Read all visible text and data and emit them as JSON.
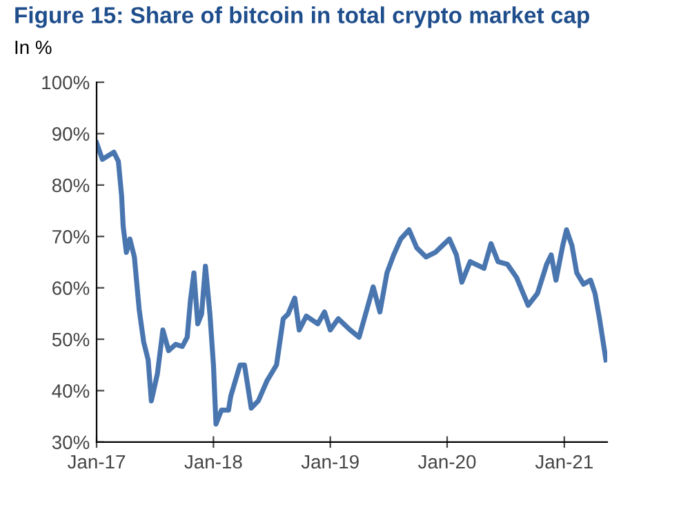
{
  "chart_data": {
    "type": "line",
    "title": "Figure 15: Share of bitcoin in total crypto market cap",
    "subtitle": "In %",
    "x": [
      "2017-01-01",
      "2017-01-19",
      "2017-02-24",
      "2017-03-10",
      "2017-03-20",
      "2017-03-25",
      "2017-04-04",
      "2017-04-15",
      "2017-04-29",
      "2017-05-14",
      "2017-05-28",
      "2017-06-11",
      "2017-06-21",
      "2017-07-10",
      "2017-07-27",
      "2017-08-14",
      "2017-09-05",
      "2017-09-26",
      "2017-10-11",
      "2017-10-21",
      "2017-11-01",
      "2017-11-13",
      "2017-11-25",
      "2017-12-07",
      "2017-12-21",
      "2018-01-01",
      "2018-01-09",
      "2018-01-26",
      "2018-02-17",
      "2018-02-24",
      "2018-03-25",
      "2018-04-08",
      "2018-04-29",
      "2018-05-21",
      "2018-06-18",
      "2018-07-17",
      "2018-08-07",
      "2018-08-22",
      "2018-09-12",
      "2018-09-26",
      "2018-10-18",
      "2018-11-23",
      "2018-12-14",
      "2019-01-01",
      "2019-01-26",
      "2019-03-04",
      "2019-04-01",
      "2019-05-15",
      "2019-06-05",
      "2019-06-27",
      "2019-07-18",
      "2019-08-09",
      "2019-09-04",
      "2019-09-28",
      "2019-10-27",
      "2019-11-25",
      "2020-01-08",
      "2020-01-30",
      "2020-02-16",
      "2020-03-13",
      "2020-04-25",
      "2020-05-17",
      "2020-06-08",
      "2020-07-07",
      "2020-08-05",
      "2020-09-10",
      "2020-10-09",
      "2020-11-07",
      "2020-11-21",
      "2020-12-06",
      "2020-12-27",
      "2021-01-08",
      "2021-01-25",
      "2021-02-09",
      "2021-03-02",
      "2021-03-24",
      "2021-04-07",
      "2021-04-21",
      "2021-05-11"
    ],
    "series": [
      {
        "color": "#4a76b0",
        "values": [
          88.2,
          85,
          86.4,
          84.6,
          78,
          72,
          66.9,
          69.5,
          66,
          55.8,
          49.5,
          46,
          38,
          43.3,
          51.8,
          47.8,
          49,
          48.6,
          50.4,
          57.5,
          62.9,
          53,
          54.9,
          64.2,
          54.9,
          45,
          33.5,
          36.2,
          36.2,
          38.9,
          45,
          45,
          36.6,
          38,
          42,
          45,
          54,
          54.9,
          58,
          51.8,
          54.5,
          53,
          55.3,
          51.8,
          54,
          51.8,
          50.4,
          60.2,
          55.3,
          62.9,
          66.4,
          69.5,
          71.3,
          67.8,
          66,
          66.9,
          69.5,
          66.4,
          61.1,
          65.1,
          63.8,
          68.6,
          65.1,
          64.6,
          62,
          56.6,
          58.9,
          64.6,
          66.4,
          61.5,
          68.2,
          71.3,
          68.2,
          62.9,
          60.7,
          61.5,
          58.9,
          54,
          46
        ]
      }
    ],
    "xlim": [
      "2017-01-01",
      "2021-05-15"
    ],
    "xticks": [
      {
        "value": "2017-01-01",
        "label": "Jan-17"
      },
      {
        "value": "2018-01-01",
        "label": "Jan-18"
      },
      {
        "value": "2019-01-01",
        "label": "Jan-19"
      },
      {
        "value": "2020-01-01",
        "label": "Jan-20"
      },
      {
        "value": "2021-01-01",
        "label": "Jan-21"
      }
    ],
    "ylim": [
      30,
      100
    ],
    "yticks": [
      {
        "value": 30,
        "label": "30%"
      },
      {
        "value": 40,
        "label": "40%"
      },
      {
        "value": 50,
        "label": "50%"
      },
      {
        "value": 60,
        "label": "60%"
      },
      {
        "value": 70,
        "label": "70%"
      },
      {
        "value": 80,
        "label": "80%"
      },
      {
        "value": 90,
        "label": "90%"
      },
      {
        "value": 100,
        "label": "100%"
      }
    ],
    "grid": false,
    "legend": false,
    "marker": "none",
    "line_style": "solid"
  }
}
